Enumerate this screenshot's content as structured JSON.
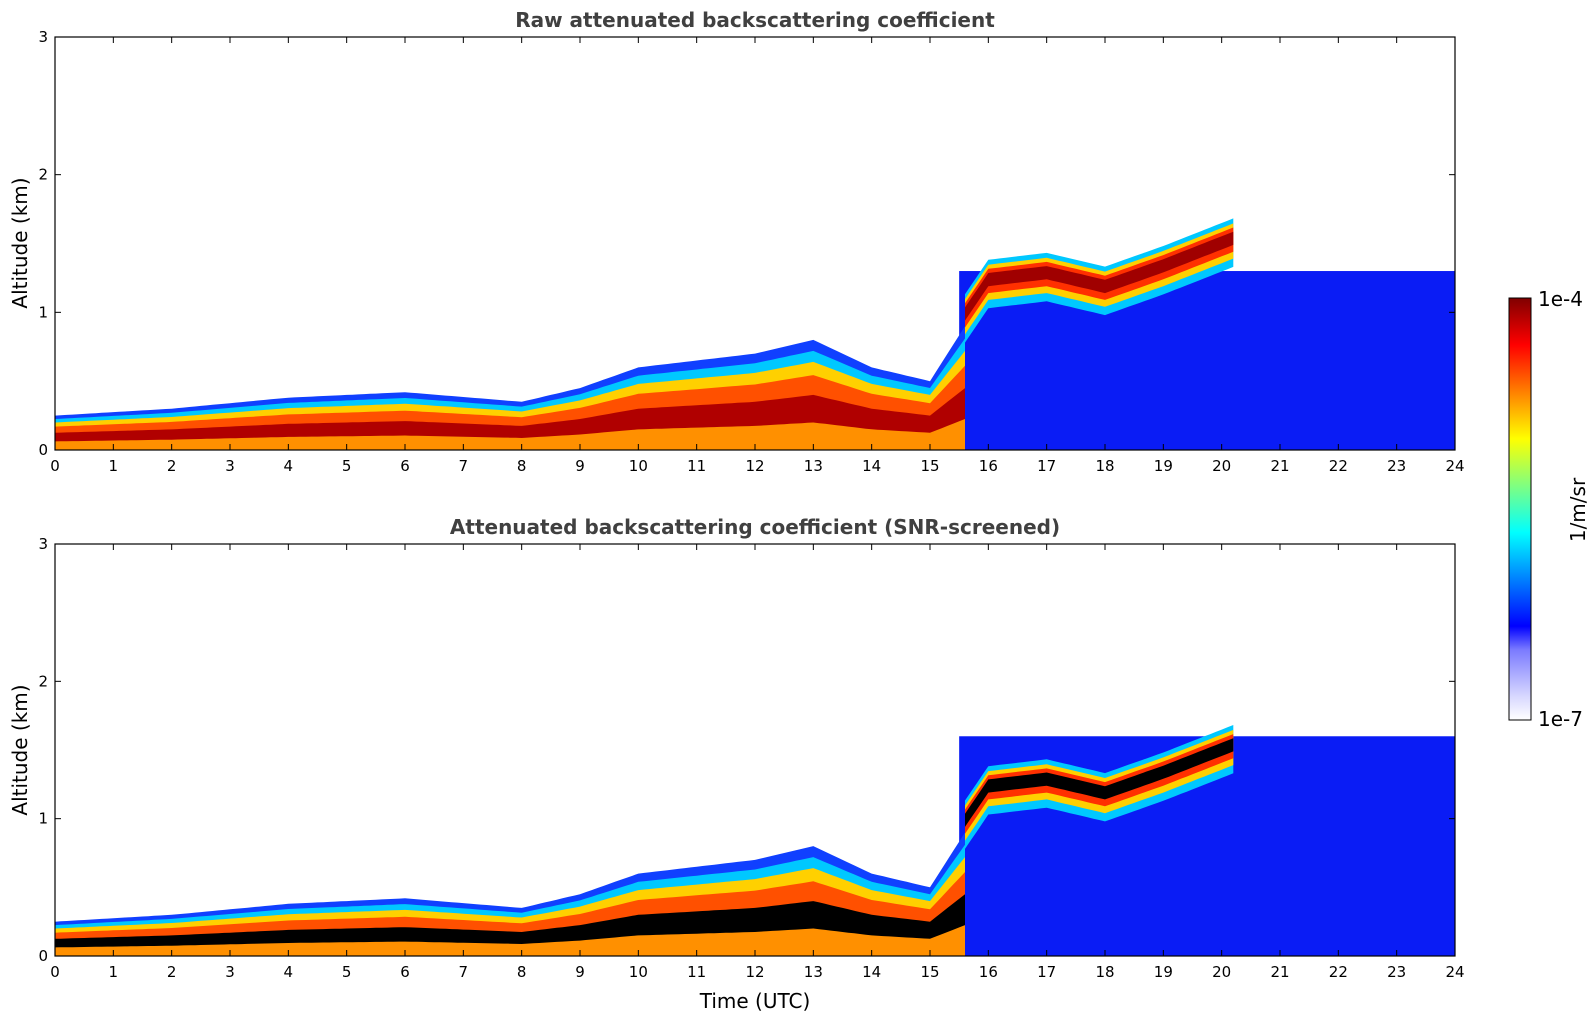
{
  "chart_data": [
    {
      "type": "heatmap",
      "title": "Raw attenuated backscattering coefficient",
      "xlabel": "",
      "ylabel": "Altitude (km)",
      "xlim": [
        0,
        24
      ],
      "ylim": [
        0,
        3
      ],
      "xticks": [
        "0",
        "1",
        "2",
        "3",
        "4",
        "5",
        "6",
        "7",
        "8",
        "9",
        "10",
        "11",
        "12",
        "13",
        "14",
        "15",
        "16",
        "17",
        "18",
        "19",
        "20",
        "21",
        "22",
        "23",
        "24"
      ],
      "yticks": [
        "0",
        "1",
        "2",
        "3"
      ],
      "colormap": "jet",
      "features": {
        "boundary_layer": [
          {
            "t": 0,
            "top_km": 0.25
          },
          {
            "t": 2,
            "top_km": 0.3
          },
          {
            "t": 4,
            "top_km": 0.38
          },
          {
            "t": 6,
            "top_km": 0.42
          },
          {
            "t": 8,
            "top_km": 0.35
          },
          {
            "t": 9,
            "top_km": 0.45
          },
          {
            "t": 10,
            "top_km": 0.6
          },
          {
            "t": 12,
            "top_km": 0.7
          },
          {
            "t": 13,
            "top_km": 0.8
          },
          {
            "t": 14,
            "top_km": 0.6
          },
          {
            "t": 15,
            "top_km": 0.5
          },
          {
            "t": 15.6,
            "top_km": 0.9
          }
        ],
        "elevated_layer": [
          {
            "t": 15.6,
            "alt_km": 1.0
          },
          {
            "t": 16,
            "alt_km": 1.25
          },
          {
            "t": 17,
            "alt_km": 1.3
          },
          {
            "t": 18,
            "alt_km": 1.2
          },
          {
            "t": 19,
            "alt_km": 1.35
          },
          {
            "t": 20.2,
            "alt_km": 1.55
          }
        ],
        "night_noise_region": {
          "t_start": 15.5,
          "t_end": 24,
          "top_km": 1.3
        }
      }
    },
    {
      "type": "heatmap",
      "title": "Attenuated backscattering coefficient (SNR-screened)",
      "xlabel": "Time (UTC)",
      "ylabel": "Altitude (km)",
      "xlim": [
        0,
        24
      ],
      "ylim": [
        0,
        3
      ],
      "xticks": [
        "0",
        "1",
        "2",
        "3",
        "4",
        "5",
        "6",
        "7",
        "8",
        "9",
        "10",
        "11",
        "12",
        "13",
        "14",
        "15",
        "16",
        "17",
        "18",
        "19",
        "20",
        "21",
        "22",
        "23",
        "24"
      ],
      "yticks": [
        "0",
        "1",
        "2",
        "3"
      ],
      "colormap": "jet",
      "features": {
        "boundary_layer": [
          {
            "t": 0,
            "top_km": 0.25
          },
          {
            "t": 2,
            "top_km": 0.3
          },
          {
            "t": 4,
            "top_km": 0.38
          },
          {
            "t": 6,
            "top_km": 0.42
          },
          {
            "t": 8,
            "top_km": 0.35
          },
          {
            "t": 9,
            "top_km": 0.45
          },
          {
            "t": 10,
            "top_km": 0.6
          },
          {
            "t": 12,
            "top_km": 0.7
          },
          {
            "t": 13,
            "top_km": 0.8
          },
          {
            "t": 14,
            "top_km": 0.6
          },
          {
            "t": 15,
            "top_km": 0.5
          },
          {
            "t": 15.6,
            "top_km": 0.9
          }
        ],
        "elevated_layer": [
          {
            "t": 15.6,
            "alt_km": 1.0
          },
          {
            "t": 16,
            "alt_km": 1.25
          },
          {
            "t": 17,
            "alt_km": 1.3
          },
          {
            "t": 18,
            "alt_km": 1.2
          },
          {
            "t": 19,
            "alt_km": 1.35
          },
          {
            "t": 20.2,
            "alt_km": 1.55
          }
        ],
        "night_noise_region": {
          "t_start": 15.5,
          "t_end": 24,
          "top_km": 1.6
        }
      }
    }
  ],
  "colorbar": {
    "label": "1/m/sr",
    "max_label": "1e-4",
    "min_label": "1e-7",
    "colors": [
      "#ffffff",
      "#d8d8ff",
      "#a9a9ff",
      "#7a7aff",
      "#0000ff",
      "#0040ff",
      "#0080ff",
      "#00c0ff",
      "#00ffff",
      "#40ffbf",
      "#80ff80",
      "#bfff40",
      "#ffff00",
      "#ffc000",
      "#ff8000",
      "#ff4000",
      "#ff0000",
      "#c00000",
      "#800000"
    ]
  }
}
